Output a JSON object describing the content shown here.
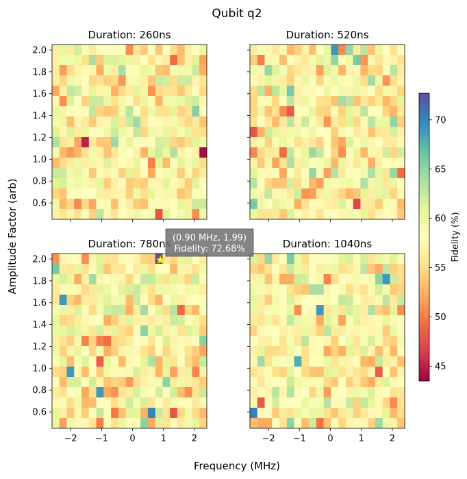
{
  "figure": {
    "title": "Qubit q2",
    "xlabel": "Frequency (MHz)",
    "ylabel": "Amplitude Factor (arb)"
  },
  "chart_data": {
    "type": "heatmap",
    "x_range": [
      -2.6,
      2.4
    ],
    "y_range": [
      0.45,
      2.05
    ],
    "x_ticks": [
      -2,
      -1,
      0,
      1,
      2
    ],
    "y_ticks": [
      0.6,
      0.8,
      1.0,
      1.2,
      1.4,
      1.6,
      1.8,
      2.0
    ],
    "grid_cols": 21,
    "grid_rows": 17,
    "colormap": "Spectral",
    "panels": [
      {
        "title": "Duration: 260ns",
        "anomalies": [
          {
            "x": -1.45,
            "y": 1.15,
            "value": 45
          },
          {
            "x": 2.35,
            "y": 1.05,
            "value": 44
          },
          {
            "x": -1.2,
            "y": 1.9,
            "value": 64
          }
        ]
      },
      {
        "title": "Duration: 520ns",
        "anomalies": [
          {
            "x": 0.1,
            "y": 2.0,
            "value": 69
          },
          {
            "x": 0.9,
            "y": 0.55,
            "value": 47
          },
          {
            "x": -2.5,
            "y": 0.55,
            "value": 66
          }
        ]
      },
      {
        "title": "Duration: 780ns",
        "anomalies": [
          {
            "x": 0.9,
            "y": 1.99,
            "value": 72.68
          },
          {
            "x": -2.2,
            "y": 1.65,
            "value": 69
          },
          {
            "x": -2.0,
            "y": 0.95,
            "value": 69
          },
          {
            "x": -1.0,
            "y": 0.8,
            "value": 69
          },
          {
            "x": 0.6,
            "y": 0.55,
            "value": 70
          }
        ]
      },
      {
        "title": "Duration: 1040ns",
        "anomalies": [
          {
            "x": -0.35,
            "y": 1.5,
            "value": 69
          },
          {
            "x": -1.1,
            "y": 1.05,
            "value": 68
          },
          {
            "x": 1.9,
            "y": 1.8,
            "value": 69
          },
          {
            "x": -2.5,
            "y": 0.55,
            "value": 70
          }
        ]
      }
    ],
    "colorbar": {
      "label": "Fidelity (%)",
      "min": 43.5,
      "max": 72.7,
      "ticks": [
        45,
        50,
        55,
        60,
        65,
        70
      ]
    },
    "marker": {
      "panel": 2,
      "x": 0.9,
      "y": 1.99,
      "tooltip_line1": "(0.90 MHz, 1.99)",
      "tooltip_line2": "Fidelity: 72.68%",
      "color": "#ffff00"
    }
  }
}
